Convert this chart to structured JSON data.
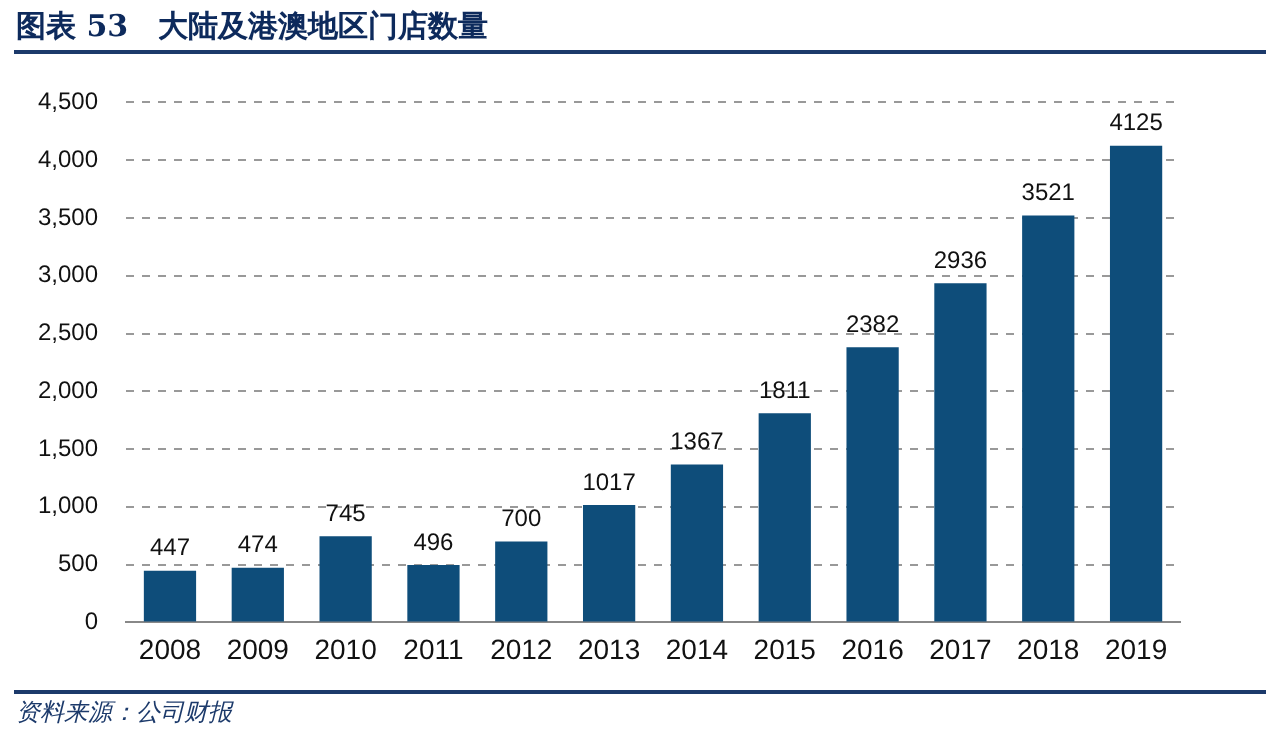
{
  "chart_data": {
    "type": "bar",
    "title": "图表 53　大陆及港澳地区门店数量",
    "categories": [
      "2008",
      "2009",
      "2010",
      "2011",
      "2012",
      "2013",
      "2014",
      "2015",
      "2016",
      "2017",
      "2018",
      "2019"
    ],
    "values": [
      447,
      474,
      745,
      496,
      700,
      1017,
      1367,
      1811,
      2382,
      2936,
      3521,
      4125
    ],
    "color": "#0e4d7a",
    "ylim": [
      0,
      4500
    ],
    "yticks": [
      {
        "value": 0,
        "label": "0"
      },
      {
        "value": 500,
        "label": "500"
      },
      {
        "value": 1000,
        "label": "1,000"
      },
      {
        "value": 1500,
        "label": "1,500"
      },
      {
        "value": 2000,
        "label": "2,000"
      },
      {
        "value": 2500,
        "label": "2,500"
      },
      {
        "value": 3000,
        "label": "3,000"
      },
      {
        "value": 3500,
        "label": "3,500"
      },
      {
        "value": 4000,
        "label": "4,000"
      },
      {
        "value": 4500,
        "label": "4,500"
      }
    ],
    "grid": "y",
    "data_labels": true,
    "annotations": [
      "资料来源：公司财报"
    ]
  }
}
